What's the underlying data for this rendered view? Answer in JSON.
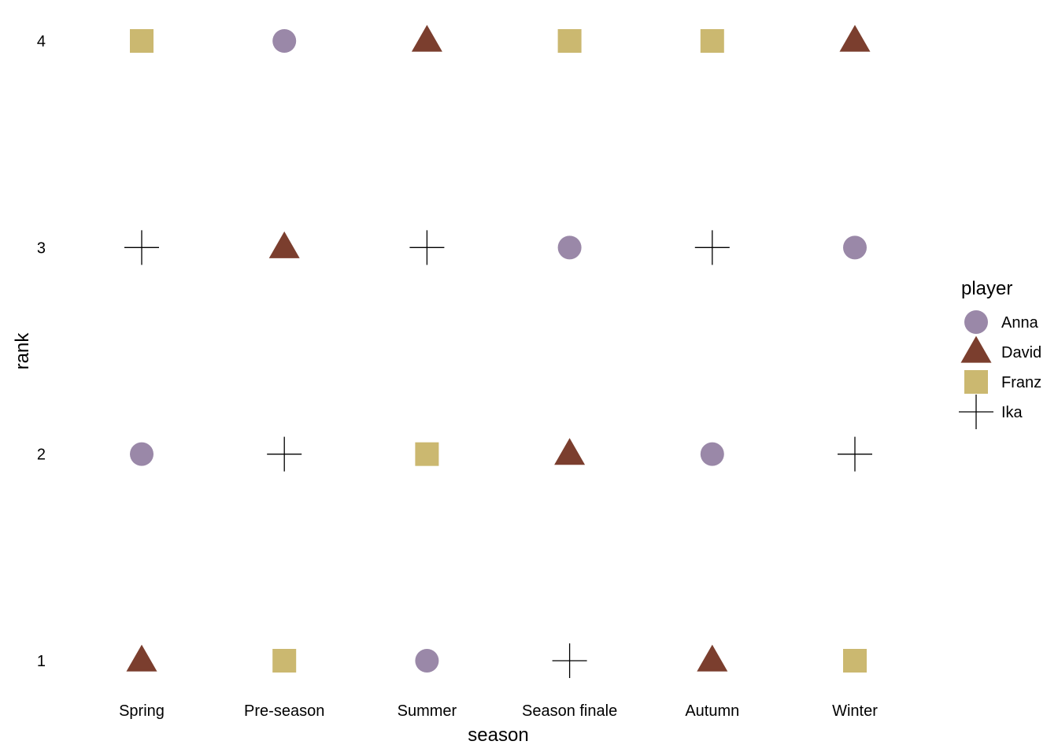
{
  "chart_data": {
    "type": "scatter",
    "xlabel": "season",
    "ylabel": "rank",
    "categories": [
      "Spring",
      "Pre-season",
      "Summer",
      "Season finale",
      "Autumn",
      "Winter"
    ],
    "y_ticks": [
      "1",
      "2",
      "3",
      "4"
    ],
    "ylim": [
      1,
      4
    ],
    "grid": false,
    "legend": {
      "title": "player",
      "placement": "right"
    },
    "series": [
      {
        "name": "Anna",
        "shape": "circle",
        "color": "#9a88a8",
        "values": [
          2,
          4,
          1,
          3,
          2,
          3
        ]
      },
      {
        "name": "David",
        "shape": "triangle",
        "color": "#7b3e2e",
        "values": [
          1,
          3,
          4,
          2,
          1,
          4
        ]
      },
      {
        "name": "Franz",
        "shape": "square",
        "color": "#cbb870",
        "values": [
          4,
          1,
          2,
          4,
          4,
          1
        ]
      },
      {
        "name": "Ika",
        "shape": "plus",
        "color": "#000000",
        "values": [
          3,
          2,
          3,
          1,
          3,
          2
        ]
      }
    ]
  }
}
